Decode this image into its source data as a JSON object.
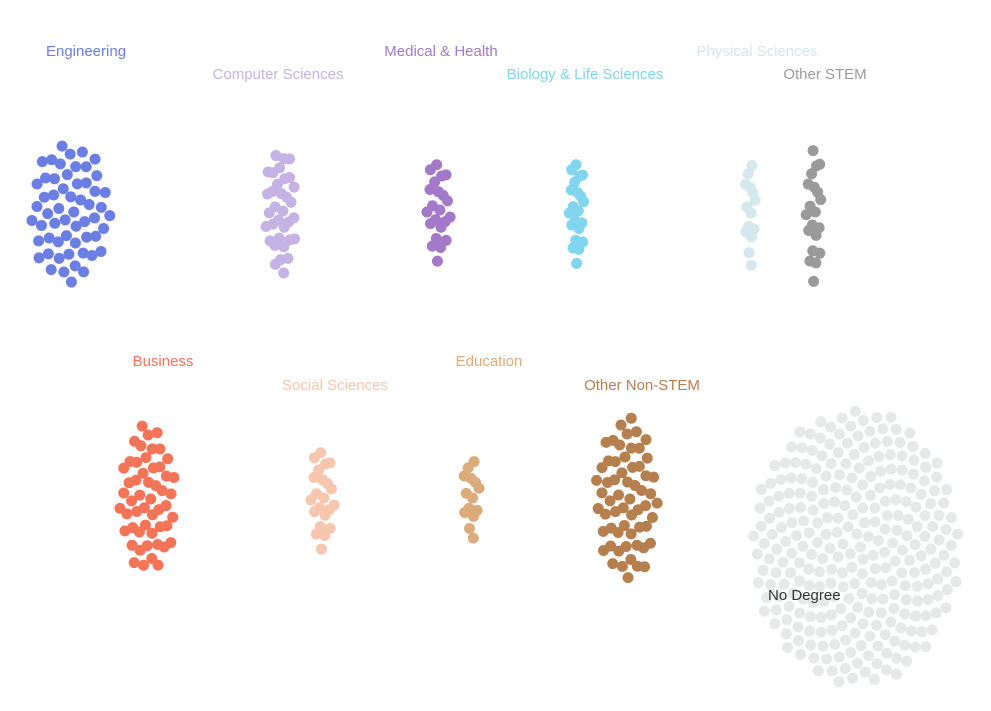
{
  "chart_data": {
    "type": "scatter",
    "subtype": "dot-cluster",
    "unit_note": "",
    "groups": [
      {
        "name": "Engineering",
        "count": 57,
        "color": "#6b7ee4"
      },
      {
        "name": "Computer Sciences",
        "count": 34,
        "color": "#c6b3e6"
      },
      {
        "name": "Medical & Health",
        "count": 22,
        "color": "#a27ac9"
      },
      {
        "name": "Biology & Life Sciences",
        "count": 21,
        "color": "#82d5ef"
      },
      {
        "name": "Physical Sciences",
        "count": 14,
        "color": "#d4e8ee"
      },
      {
        "name": "Other STEM",
        "count": 20,
        "color": "#9a9a9a"
      },
      {
        "name": "Business",
        "count": 52,
        "color": "#f47458"
      },
      {
        "name": "Social Sciences",
        "count": 22,
        "color": "#f6c6ae"
      },
      {
        "name": "Education",
        "count": 14,
        "color": "#dcab7b"
      },
      {
        "name": "Other Non-STEM",
        "count": 60,
        "color": "#b57f4e"
      },
      {
        "name": "No Degree",
        "count": 280,
        "color": "#e6e9e8",
        "label_color": "#333333"
      }
    ]
  }
}
